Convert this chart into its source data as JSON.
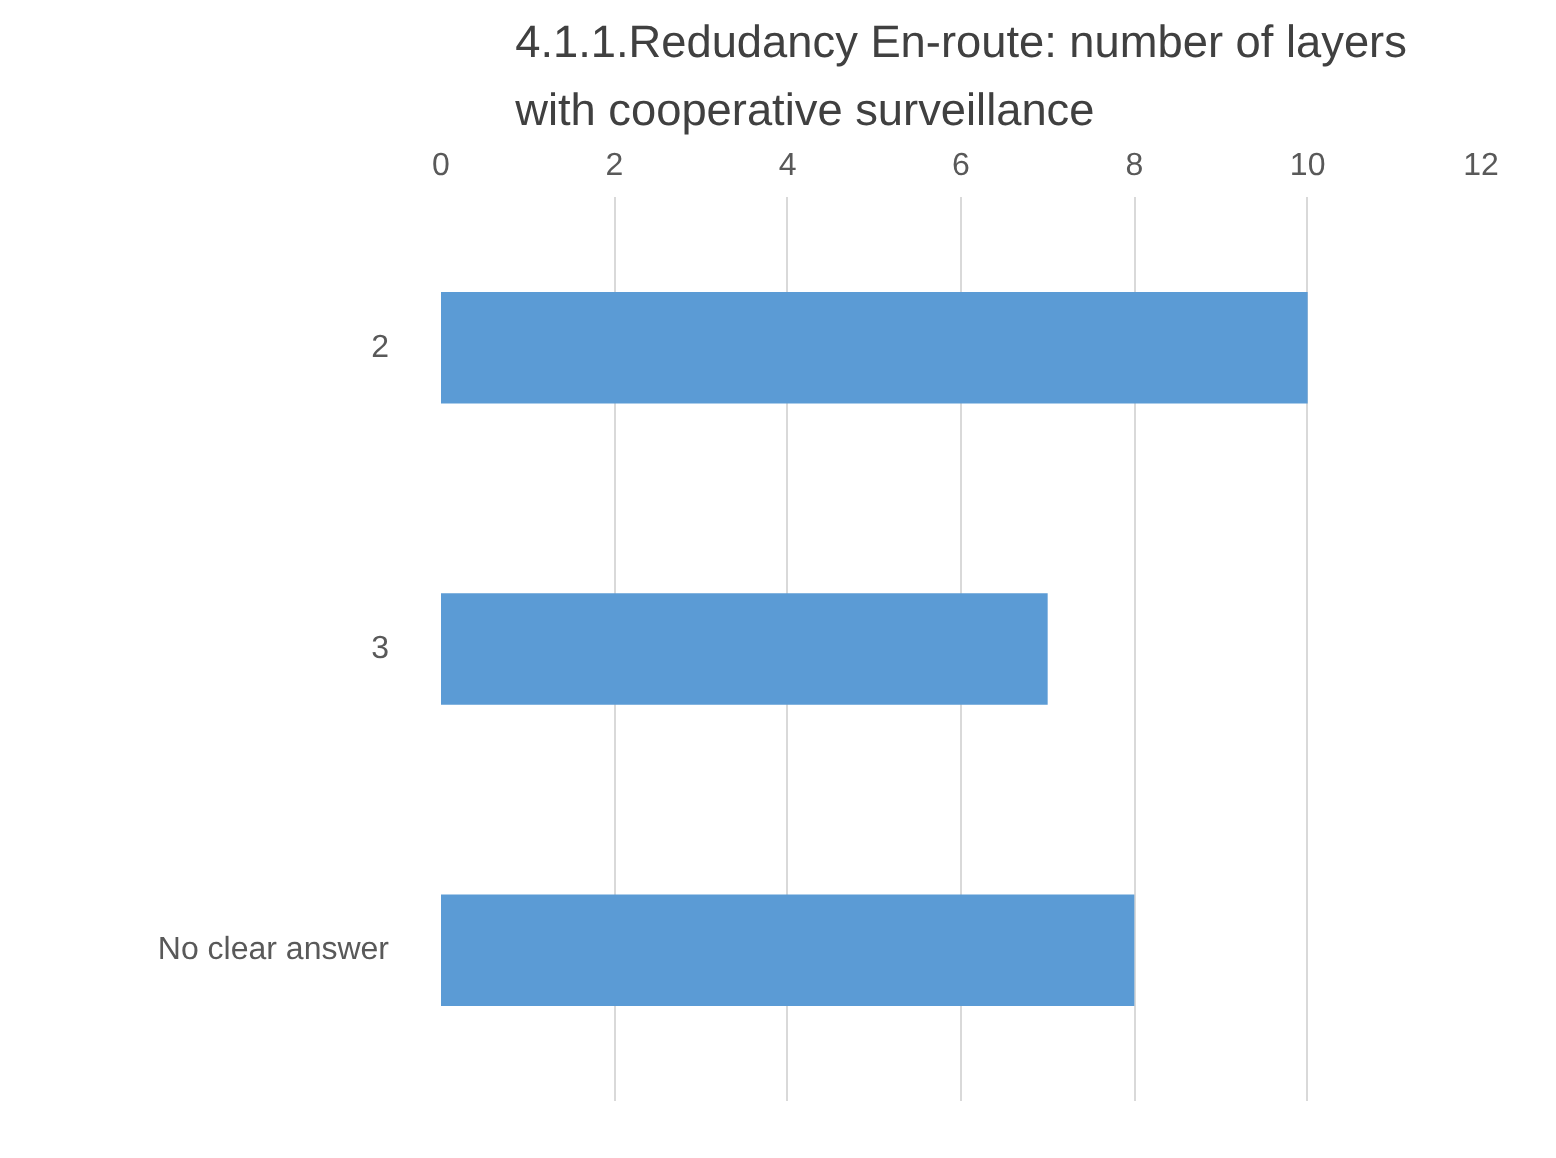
{
  "chart_data": {
    "type": "bar",
    "orientation": "horizontal",
    "title": "4.1.1.Redudancy En-route: number of layers with cooperative surveillance",
    "categories": [
      "2",
      "3",
      "No clear answer"
    ],
    "values": [
      10,
      7,
      8
    ],
    "color": "#5b9bd5",
    "xlim": [
      0,
      12
    ],
    "xticks": [
      0,
      2,
      4,
      6,
      8,
      10,
      12
    ],
    "grid": "x"
  }
}
